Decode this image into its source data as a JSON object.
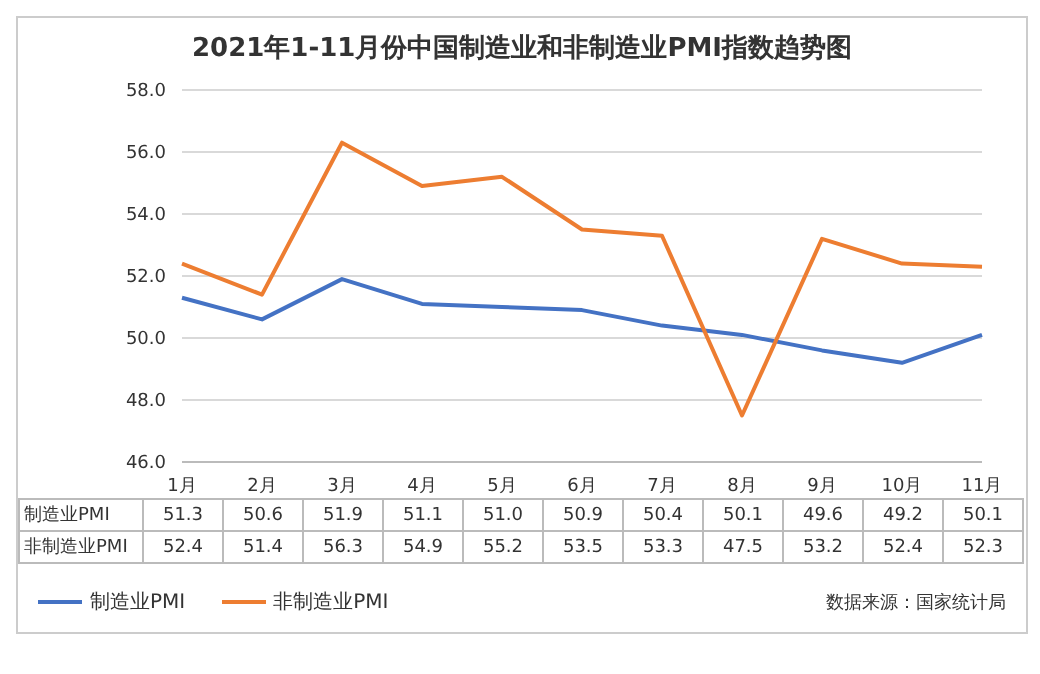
{
  "chart_data": {
    "type": "line",
    "title": "2021年1-11月份中国制造业和非制造业PMI指数趋势图",
    "categories": [
      "1月",
      "2月",
      "3月",
      "4月",
      "5月",
      "6月",
      "7月",
      "8月",
      "9月",
      "10月",
      "11月"
    ],
    "series": [
      {
        "name": "制造业PMI",
        "color": "#4472c4",
        "values": [
          51.3,
          50.6,
          51.9,
          51.1,
          51.0,
          50.9,
          50.4,
          50.1,
          49.6,
          49.2,
          50.1
        ],
        "value_labels": [
          "51.3",
          "50.6",
          "51.9",
          "51.1",
          "51.0",
          "50.9",
          "50.4",
          "50.1",
          "49.6",
          "49.2",
          "50.1"
        ]
      },
      {
        "name": "非制造业PMI",
        "color": "#ed7d31",
        "values": [
          52.4,
          51.4,
          56.3,
          54.9,
          55.2,
          53.5,
          53.3,
          47.5,
          53.2,
          52.4,
          52.3
        ],
        "value_labels": [
          "52.4",
          "51.4",
          "56.3",
          "54.9",
          "55.2",
          "53.5",
          "53.3",
          "47.5",
          "53.2",
          "52.4",
          "52.3"
        ]
      }
    ],
    "ylim": [
      46,
      58
    ],
    "yticks": [
      {
        "value": 46,
        "label": "46.0"
      },
      {
        "value": 48,
        "label": "48.0"
      },
      {
        "value": 50,
        "label": "50.0"
      },
      {
        "value": 52,
        "label": "52.0"
      },
      {
        "value": 54,
        "label": "54.0"
      },
      {
        "value": 56,
        "label": "56.0"
      },
      {
        "value": 58,
        "label": "58.0"
      }
    ],
    "grid": "y",
    "legend": "bottom",
    "marker": "none",
    "annotations": [
      "数据来源：国家统计局"
    ]
  }
}
